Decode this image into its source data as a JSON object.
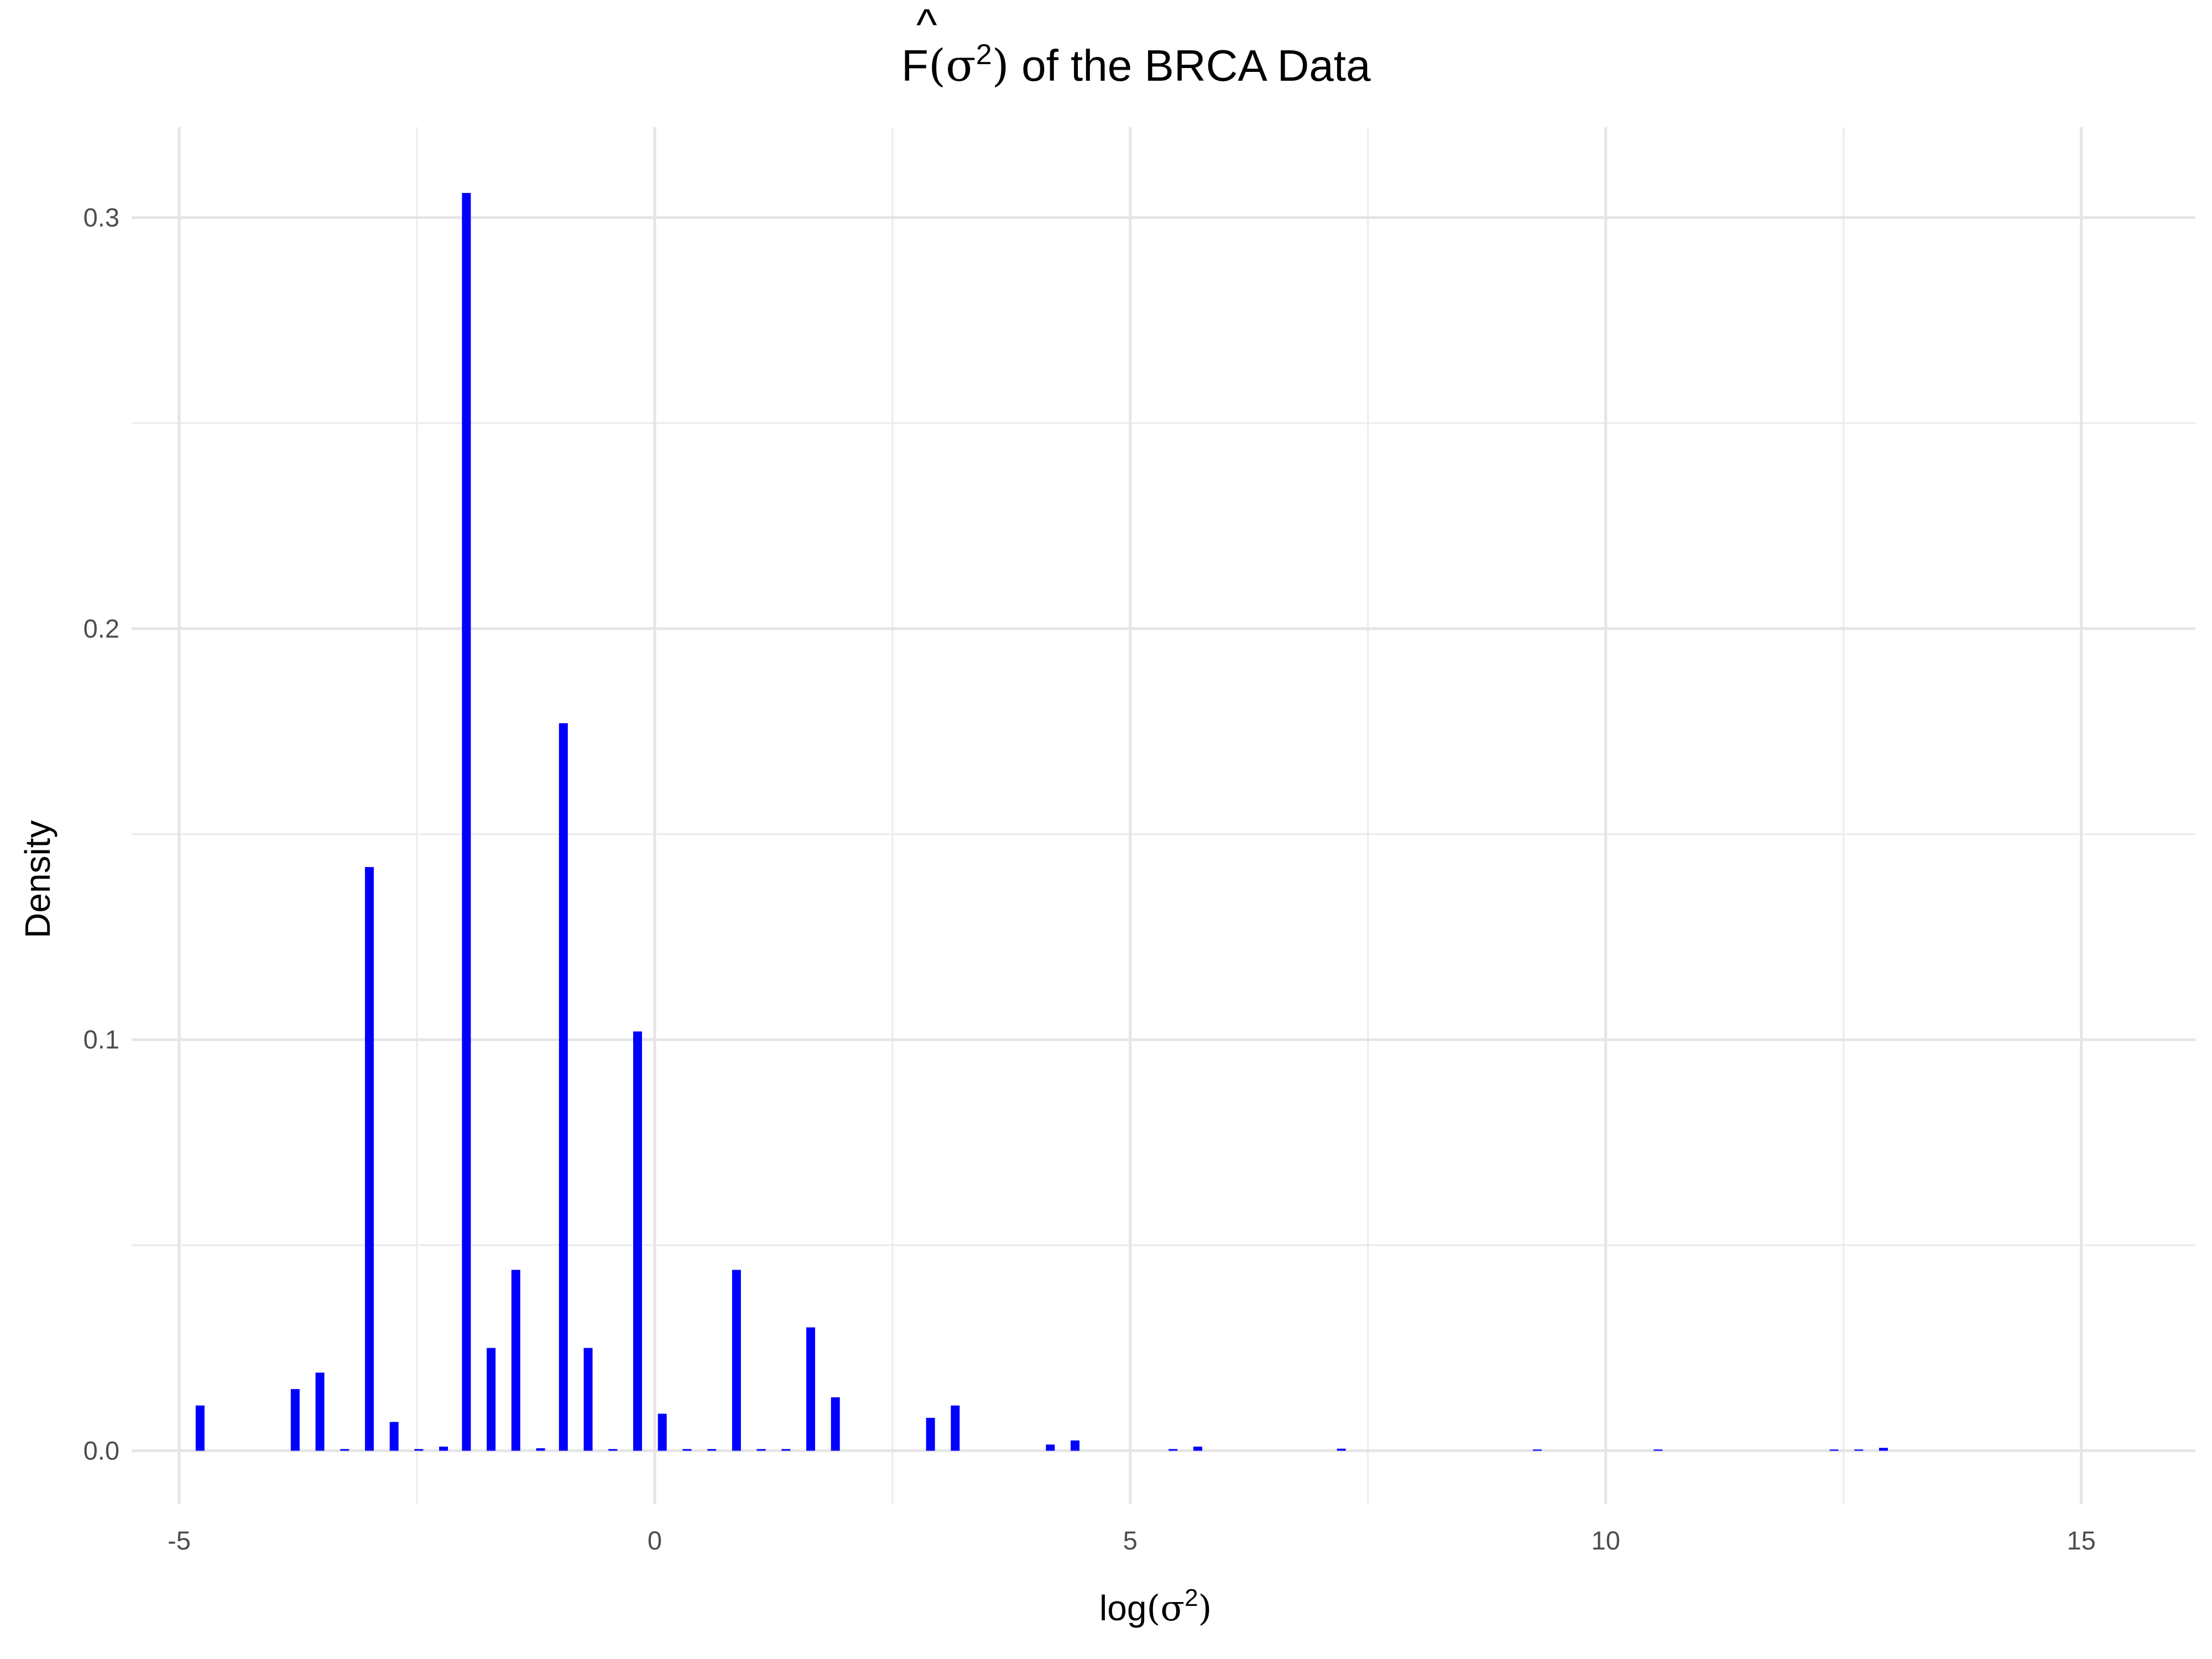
{
  "chart_data": {
    "type": "bar",
    "title": {
      "F": "F",
      "hat": "^",
      "open": "(",
      "sigma": "σ",
      "sup": "2",
      "close": ")",
      "rest": " of the BRCA Data"
    },
    "xlabel": {
      "prefix": "log",
      "open": "(",
      "sigma": "σ",
      "sup": "2",
      "close": ")"
    },
    "ylabel": "Density",
    "xlim": [
      -5.5,
      16.2
    ],
    "ylim": [
      -0.013,
      0.322
    ],
    "x_major_ticks": [
      -5,
      0,
      5,
      10,
      15
    ],
    "x_tick_labels": [
      "-5",
      "0",
      "5",
      "10",
      "15"
    ],
    "x_minor_ticks": [
      -2.5,
      2.5,
      7.5,
      12.5
    ],
    "y_major_ticks": [
      0.0,
      0.1,
      0.2,
      0.3
    ],
    "y_tick_labels": [
      "0.0",
      "0.1",
      "0.2",
      "0.3"
    ],
    "y_minor_ticks": [
      0.05,
      0.15,
      0.25
    ],
    "grid": true,
    "bar_color": "#0000ff",
    "bars": [
      {
        "x": -4.78,
        "y": 0.011
      },
      {
        "x": -3.78,
        "y": 0.015
      },
      {
        "x": -3.52,
        "y": 0.019
      },
      {
        "x": -3.26,
        "y": 0.0004
      },
      {
        "x": -3.0,
        "y": 0.142
      },
      {
        "x": -2.74,
        "y": 0.007
      },
      {
        "x": -2.48,
        "y": 0.0004
      },
      {
        "x": -2.22,
        "y": 0.001
      },
      {
        "x": -1.98,
        "y": 0.306
      },
      {
        "x": -1.72,
        "y": 0.025
      },
      {
        "x": -1.46,
        "y": 0.044
      },
      {
        "x": -1.2,
        "y": 0.0006
      },
      {
        "x": -0.96,
        "y": 0.177
      },
      {
        "x": -0.7,
        "y": 0.025
      },
      {
        "x": -0.44,
        "y": 0.0004
      },
      {
        "x": -0.18,
        "y": 0.102
      },
      {
        "x": 0.08,
        "y": 0.009
      },
      {
        "x": 0.34,
        "y": 0.0004
      },
      {
        "x": 0.6,
        "y": 0.0004
      },
      {
        "x": 0.86,
        "y": 0.044
      },
      {
        "x": 1.12,
        "y": 0.0004
      },
      {
        "x": 1.38,
        "y": 0.0004
      },
      {
        "x": 1.64,
        "y": 0.03
      },
      {
        "x": 1.9,
        "y": 0.013
      },
      {
        "x": 2.9,
        "y": 0.008
      },
      {
        "x": 3.16,
        "y": 0.011
      },
      {
        "x": 4.16,
        "y": 0.0015
      },
      {
        "x": 4.42,
        "y": 0.0025
      },
      {
        "x": 5.45,
        "y": 0.0004
      },
      {
        "x": 5.71,
        "y": 0.001
      },
      {
        "x": 7.22,
        "y": 0.0005
      },
      {
        "x": 9.28,
        "y": 0.0003
      },
      {
        "x": 10.55,
        "y": 0.0003
      },
      {
        "x": 12.4,
        "y": 0.0003
      },
      {
        "x": 12.66,
        "y": 0.0003
      },
      {
        "x": 12.92,
        "y": 0.0007
      }
    ]
  }
}
